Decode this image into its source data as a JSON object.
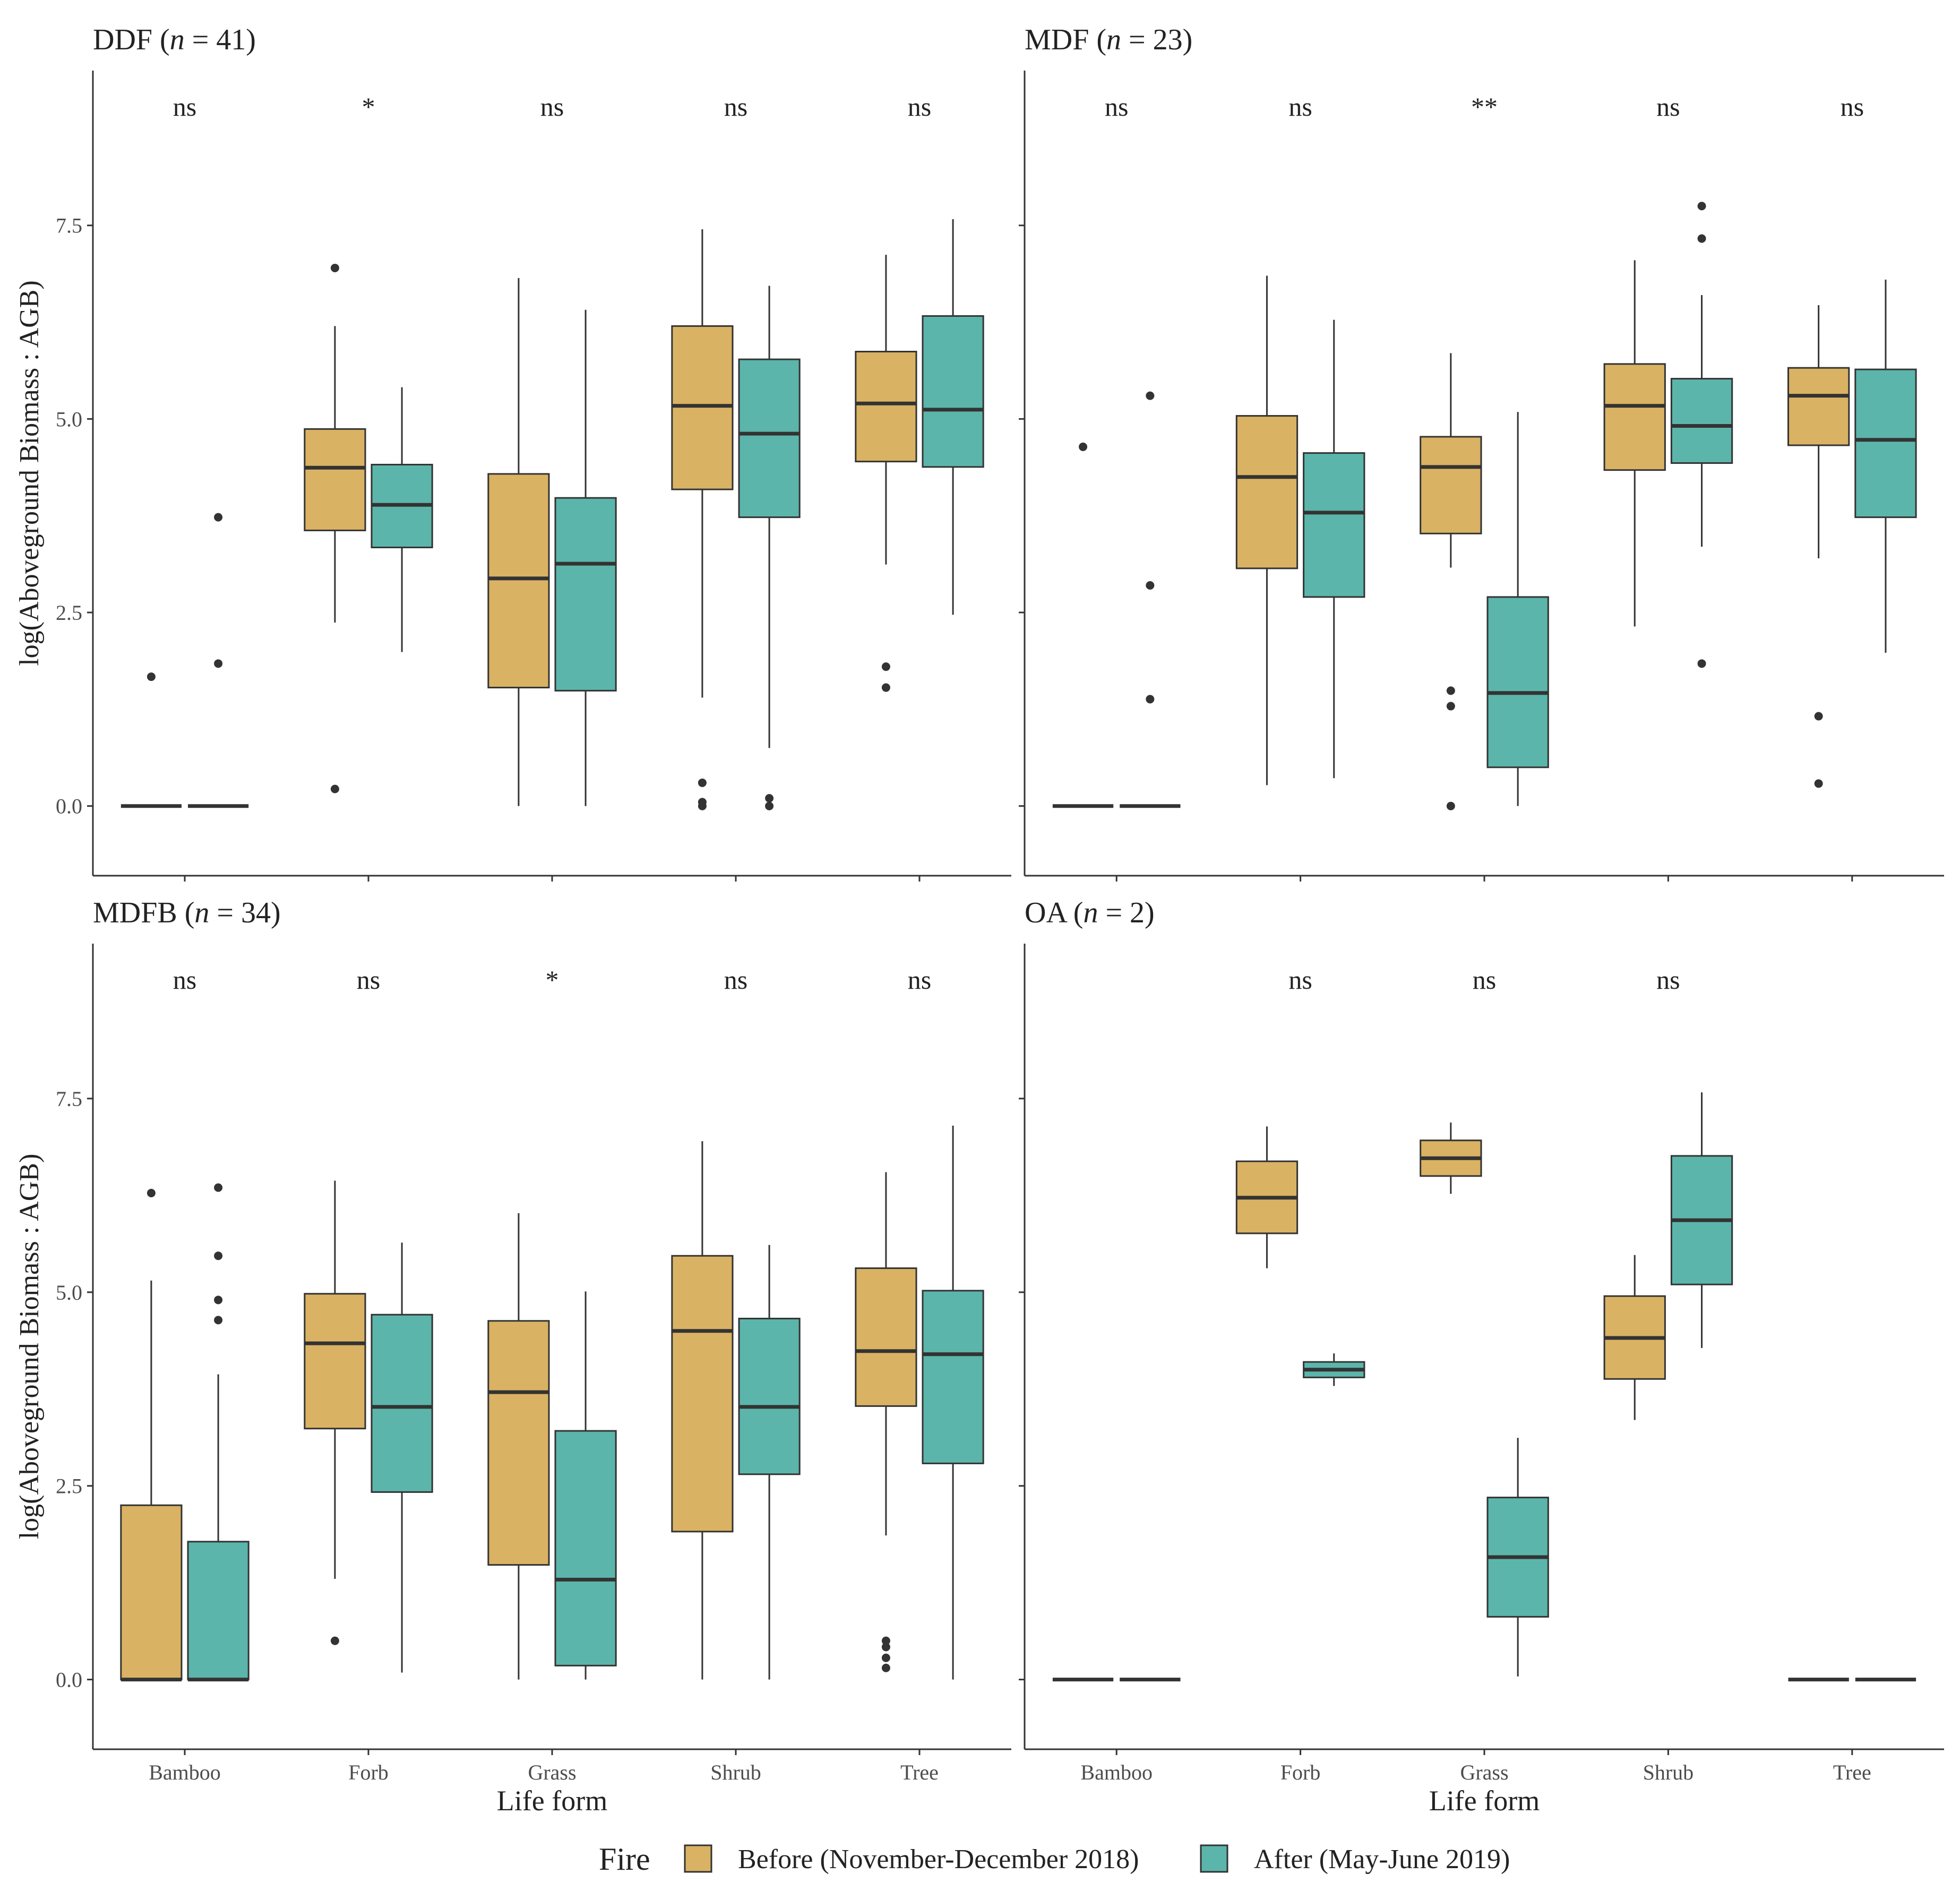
{
  "chart_data": [
    {
      "type": "box",
      "panel": "DDF",
      "title_prefix": "DDF (",
      "title_var": "n",
      "title_suffix": " = 41)",
      "xlabel": "",
      "ylabel": "log(Aboveground Biomass : AGB)",
      "ylim": [
        -0.9,
        9.5
      ],
      "yticks": [
        "0.0",
        "2.5",
        "5.0",
        "7.5"
      ],
      "categories": [
        "Bamboo",
        "Forb",
        "Grass",
        "Shrub",
        "Tree"
      ],
      "show_xtick_labels": false,
      "significance": [
        "ns",
        "*",
        "ns",
        "ns",
        "ns"
      ],
      "series": [
        {
          "name": "Before (November-December 2018)",
          "boxes": [
            {
              "whislo": 0,
              "q1": 0,
              "med": 0,
              "q3": 0,
              "whishi": 0,
              "fliers": [
                1.67
              ]
            },
            {
              "whislo": 2.37,
              "q1": 3.56,
              "med": 4.37,
              "q3": 4.87,
              "whishi": 6.2,
              "fliers": [
                6.95,
                0.22
              ]
            },
            {
              "whislo": 0,
              "q1": 1.53,
              "med": 2.94,
              "q3": 4.29,
              "whishi": 6.82,
              "fliers": []
            },
            {
              "whislo": 1.4,
              "q1": 4.09,
              "med": 5.17,
              "q3": 6.2,
              "whishi": 7.45,
              "fliers": [
                0.3,
                0.05,
                0
              ]
            },
            {
              "whislo": 3.12,
              "q1": 4.45,
              "med": 5.2,
              "q3": 5.87,
              "whishi": 7.12,
              "fliers": [
                1.8,
                1.53
              ]
            }
          ]
        },
        {
          "name": "After (May-June 2019)",
          "boxes": [
            {
              "whislo": 0,
              "q1": 0,
              "med": 0,
              "q3": 0,
              "whishi": 0,
              "fliers": [
                3.73,
                1.84
              ]
            },
            {
              "whislo": 1.99,
              "q1": 3.34,
              "med": 3.89,
              "q3": 4.41,
              "whishi": 5.41,
              "fliers": []
            },
            {
              "whislo": 0,
              "q1": 1.49,
              "med": 3.13,
              "q3": 3.98,
              "whishi": 6.41,
              "fliers": []
            },
            {
              "whislo": 0.75,
              "q1": 3.73,
              "med": 4.81,
              "q3": 5.77,
              "whishi": 6.72,
              "fliers": [
                0.1,
                0
              ]
            },
            {
              "whislo": 2.47,
              "q1": 4.38,
              "med": 5.12,
              "q3": 6.33,
              "whishi": 7.58,
              "fliers": []
            }
          ]
        }
      ]
    },
    {
      "type": "box",
      "panel": "MDF",
      "title_prefix": "MDF (",
      "title_var": "n",
      "title_suffix": " = 23)",
      "xlabel": "",
      "ylabel": "",
      "ylim": [
        -0.9,
        9.5
      ],
      "yticks": [
        "0.0",
        "2.5",
        "5.0",
        "7.5"
      ],
      "categories": [
        "Bamboo",
        "Forb",
        "Grass",
        "Shrub",
        "Tree"
      ],
      "show_xtick_labels": false,
      "significance": [
        "ns",
        "ns",
        "**",
        "ns",
        "ns"
      ],
      "series": [
        {
          "name": "Before (November-December 2018)",
          "boxes": [
            {
              "whislo": 0,
              "q1": 0,
              "med": 0,
              "q3": 0,
              "whishi": 0,
              "fliers": [
                4.64
              ]
            },
            {
              "whislo": 0.27,
              "q1": 3.07,
              "med": 4.25,
              "q3": 5.04,
              "whishi": 6.85,
              "fliers": []
            },
            {
              "whislo": 3.08,
              "q1": 3.52,
              "med": 4.38,
              "q3": 4.77,
              "whishi": 5.85,
              "fliers": [
                1.49,
                1.29,
                0
              ]
            },
            {
              "whislo": 2.32,
              "q1": 4.34,
              "med": 5.17,
              "q3": 5.71,
              "whishi": 7.05,
              "fliers": []
            },
            {
              "whislo": 3.2,
              "q1": 4.66,
              "med": 5.3,
              "q3": 5.66,
              "whishi": 6.47,
              "fliers": [
                1.16,
                0.29
              ]
            }
          ]
        },
        {
          "name": "After (May-June 2019)",
          "boxes": [
            {
              "whislo": 0,
              "q1": 0,
              "med": 0,
              "q3": 0,
              "whishi": 0,
              "fliers": [
                5.3,
                2.85,
                1.38
              ]
            },
            {
              "whislo": 0.36,
              "q1": 2.7,
              "med": 3.79,
              "q3": 4.56,
              "whishi": 6.28,
              "fliers": []
            },
            {
              "whislo": 0,
              "q1": 0.5,
              "med": 1.46,
              "q3": 2.7,
              "whishi": 5.09,
              "fliers": []
            },
            {
              "whislo": 3.35,
              "q1": 4.43,
              "med": 4.91,
              "q3": 5.52,
              "whishi": 6.6,
              "fliers": [
                7.75,
                7.33,
                1.84
              ]
            },
            {
              "whislo": 1.98,
              "q1": 3.73,
              "med": 4.73,
              "q3": 5.64,
              "whishi": 6.8,
              "fliers": []
            }
          ]
        }
      ]
    },
    {
      "type": "box",
      "panel": "MDFB",
      "title_prefix": "MDFB (",
      "title_var": "n",
      "title_suffix": " = 34)",
      "xlabel": "Life form",
      "ylabel": "log(Aboveground Biomass : AGB)",
      "ylim": [
        -0.9,
        9.5
      ],
      "yticks": [
        "0.0",
        "2.5",
        "5.0",
        "7.5"
      ],
      "categories": [
        "Bamboo",
        "Forb",
        "Grass",
        "Shrub",
        "Tree"
      ],
      "show_xtick_labels": true,
      "significance": [
        "ns",
        "ns",
        "*",
        "ns",
        "ns"
      ],
      "series": [
        {
          "name": "Before (November-December 2018)",
          "boxes": [
            {
              "whislo": 0,
              "q1": 0,
              "med": 0,
              "q3": 2.25,
              "whishi": 5.15,
              "fliers": [
                6.28
              ]
            },
            {
              "whislo": 1.3,
              "q1": 3.24,
              "med": 4.34,
              "q3": 4.98,
              "whishi": 6.44,
              "fliers": [
                0.5
              ]
            },
            {
              "whislo": 0,
              "q1": 1.48,
              "med": 3.71,
              "q3": 4.63,
              "whishi": 6.02,
              "fliers": []
            },
            {
              "whislo": 0,
              "q1": 1.91,
              "med": 4.5,
              "q3": 5.47,
              "whishi": 6.95,
              "fliers": []
            },
            {
              "whislo": 1.86,
              "q1": 3.53,
              "med": 4.24,
              "q3": 5.31,
              "whishi": 6.55,
              "fliers": [
                0.5,
                0.42,
                0.28,
                0.15
              ]
            }
          ]
        },
        {
          "name": "After (May-June 2019)",
          "boxes": [
            {
              "whislo": 0,
              "q1": 0,
              "med": 0,
              "q3": 1.78,
              "whishi": 3.94,
              "fliers": [
                6.35,
                5.47,
                4.9,
                4.64
              ]
            },
            {
              "whislo": 0.09,
              "q1": 2.42,
              "med": 3.52,
              "q3": 4.71,
              "whishi": 5.64,
              "fliers": []
            },
            {
              "whislo": 0,
              "q1": 0.18,
              "med": 1.29,
              "q3": 3.21,
              "whishi": 5.01,
              "fliers": []
            },
            {
              "whislo": 0,
              "q1": 2.65,
              "med": 3.52,
              "q3": 4.66,
              "whishi": 5.61,
              "fliers": []
            },
            {
              "whislo": 0,
              "q1": 2.79,
              "med": 4.2,
              "q3": 5.02,
              "whishi": 7.15,
              "fliers": []
            }
          ]
        }
      ]
    },
    {
      "type": "box",
      "panel": "OA",
      "title_prefix": "OA (",
      "title_var": "n",
      "title_suffix": " = 2)",
      "xlabel": "Life form",
      "ylabel": "",
      "ylim": [
        -0.9,
        9.5
      ],
      "yticks": [
        "0.0",
        "2.5",
        "5.0",
        "7.5"
      ],
      "categories": [
        "Bamboo",
        "Forb",
        "Grass",
        "Shrub",
        "Tree"
      ],
      "show_xtick_labels": true,
      "significance": [
        "",
        "ns",
        "ns",
        "ns",
        ""
      ],
      "series": [
        {
          "name": "Before (November-December 2018)",
          "boxes": [
            {
              "whislo": 0,
              "q1": 0,
              "med": 0,
              "q3": 0,
              "whishi": 0,
              "fliers": []
            },
            {
              "whislo": 5.31,
              "q1": 5.76,
              "med": 6.22,
              "q3": 6.69,
              "whishi": 7.14,
              "fliers": []
            },
            {
              "whislo": 6.27,
              "q1": 6.5,
              "med": 6.73,
              "q3": 6.96,
              "whishi": 7.19,
              "fliers": []
            },
            {
              "whislo": 3.35,
              "q1": 3.88,
              "med": 4.41,
              "q3": 4.95,
              "whishi": 5.48,
              "fliers": []
            },
            {
              "whislo": 0,
              "q1": 0,
              "med": 0,
              "q3": 0,
              "whishi": 0,
              "fliers": []
            }
          ]
        },
        {
          "name": "After (May-June 2019)",
          "boxes": [
            {
              "whislo": 0,
              "q1": 0,
              "med": 0,
              "q3": 0,
              "whishi": 0,
              "fliers": []
            },
            {
              "whislo": 3.79,
              "q1": 3.9,
              "med": 4.0,
              "q3": 4.1,
              "whishi": 4.21,
              "fliers": []
            },
            {
              "whislo": 0.04,
              "q1": 0.81,
              "med": 1.58,
              "q3": 2.35,
              "whishi": 3.12,
              "fliers": []
            },
            {
              "whislo": 4.28,
              "q1": 5.1,
              "med": 5.93,
              "q3": 6.76,
              "whishi": 7.58,
              "fliers": []
            },
            {
              "whislo": 0,
              "q1": 0,
              "med": 0,
              "q3": 0,
              "whishi": 0,
              "fliers": []
            }
          ]
        }
      ]
    }
  ],
  "legend": {
    "title": "Fire",
    "position": "bottom",
    "items": [
      {
        "label": "Before (November-December 2018)",
        "color": "#D9B263"
      },
      {
        "label": "After (May-June 2019)",
        "color": "#5BB5AA"
      }
    ]
  },
  "colors": {
    "before": "#D9B263",
    "after": "#5BB5AA",
    "stroke": "#333333"
  }
}
